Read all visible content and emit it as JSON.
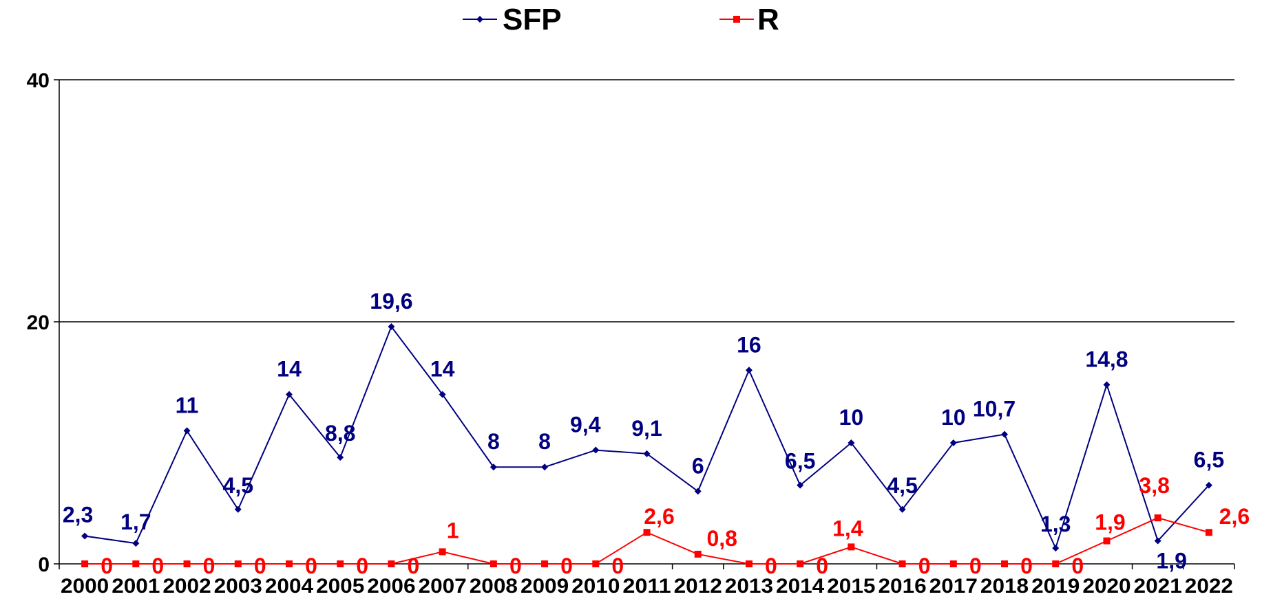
{
  "chart_data": {
    "type": "line",
    "title": "",
    "xlabel": "",
    "ylabel": "",
    "ylim": [
      0,
      40
    ],
    "yticks": [
      0,
      20,
      40
    ],
    "grid": true,
    "legend_position": "top-center",
    "x": [
      "2000",
      "2001",
      "2002",
      "2003",
      "2004",
      "2005",
      "2006",
      "2007",
      "2008",
      "2009",
      "2010",
      "2011",
      "2012",
      "2013",
      "2014",
      "2015",
      "2016",
      "2017",
      "2018",
      "2019",
      "2020",
      "2021",
      "2022"
    ],
    "series": [
      {
        "name": "SFP",
        "color": "#000080",
        "marker": "diamond",
        "values": [
          2.3,
          1.7,
          11,
          4.5,
          14,
          8.8,
          19.6,
          14,
          8,
          8,
          9.4,
          9.1,
          6,
          16,
          6.5,
          10,
          4.5,
          10,
          10.7,
          1.3,
          14.8,
          1.9,
          6.5
        ],
        "labels": [
          "2,3",
          "1,7",
          "11",
          "4,5",
          "14",
          "8,8",
          "19,6",
          "14",
          "8",
          "8",
          "9,4",
          "9,1",
          "6",
          "16",
          "6,5",
          "10",
          "4,5",
          "10",
          "10,7",
          "1,3",
          "14,8",
          "1,9",
          "6,5"
        ]
      },
      {
        "name": "R",
        "color": "#ff0000",
        "marker": "square",
        "values": [
          0,
          0,
          0,
          0,
          0,
          0,
          0,
          1,
          0,
          0,
          0,
          2.6,
          0.8,
          0,
          0,
          1.4,
          0,
          0,
          0,
          0,
          1.9,
          3.8,
          2.6
        ],
        "labels": [
          "0",
          "0",
          "0",
          "0",
          "0",
          "0",
          "0",
          "1",
          "0",
          "0",
          "0",
          "2,6",
          "0,8",
          "0",
          "0",
          "1,4",
          "0",
          "0",
          "0",
          "0",
          "1,9",
          "3,8",
          "2,6"
        ]
      }
    ]
  }
}
